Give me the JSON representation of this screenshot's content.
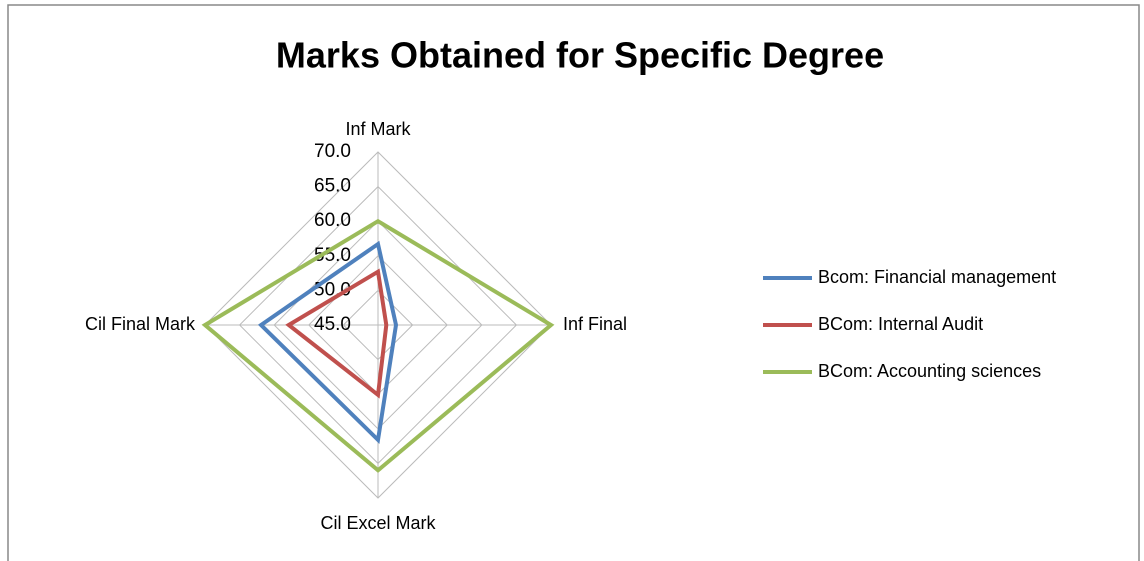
{
  "chart_data": {
    "type": "radar",
    "title": "Marks Obtained for Specific Degree",
    "categories": [
      "Inf Mark",
      "Inf Final",
      "Cil Excel Mark",
      "Cil Final Mark"
    ],
    "series": [
      {
        "name": "Bcom: Financial management",
        "color": "#4f81bd",
        "values": [
          56.7,
          47.6,
          61.6,
          61.9
        ]
      },
      {
        "name": "BCom: Internal Audit",
        "color": "#c0504d",
        "values": [
          52.7,
          46.2,
          55.1,
          57.9
        ]
      },
      {
        "name": "BCom: Accounting sciences",
        "color": "#9bbb59",
        "values": [
          60.0,
          70.0,
          66.0,
          70.0
        ]
      }
    ],
    "ylim": [
      45,
      70
    ],
    "yticks": [
      {
        "value": 45,
        "label": "45.0"
      },
      {
        "value": 50,
        "label": "50.0"
      },
      {
        "value": 55,
        "label": "55.0"
      },
      {
        "value": 60,
        "label": "60.0"
      },
      {
        "value": 65,
        "label": "65.0"
      },
      {
        "value": 70,
        "label": "70.0"
      }
    ],
    "grid": true,
    "legend": "right"
  }
}
